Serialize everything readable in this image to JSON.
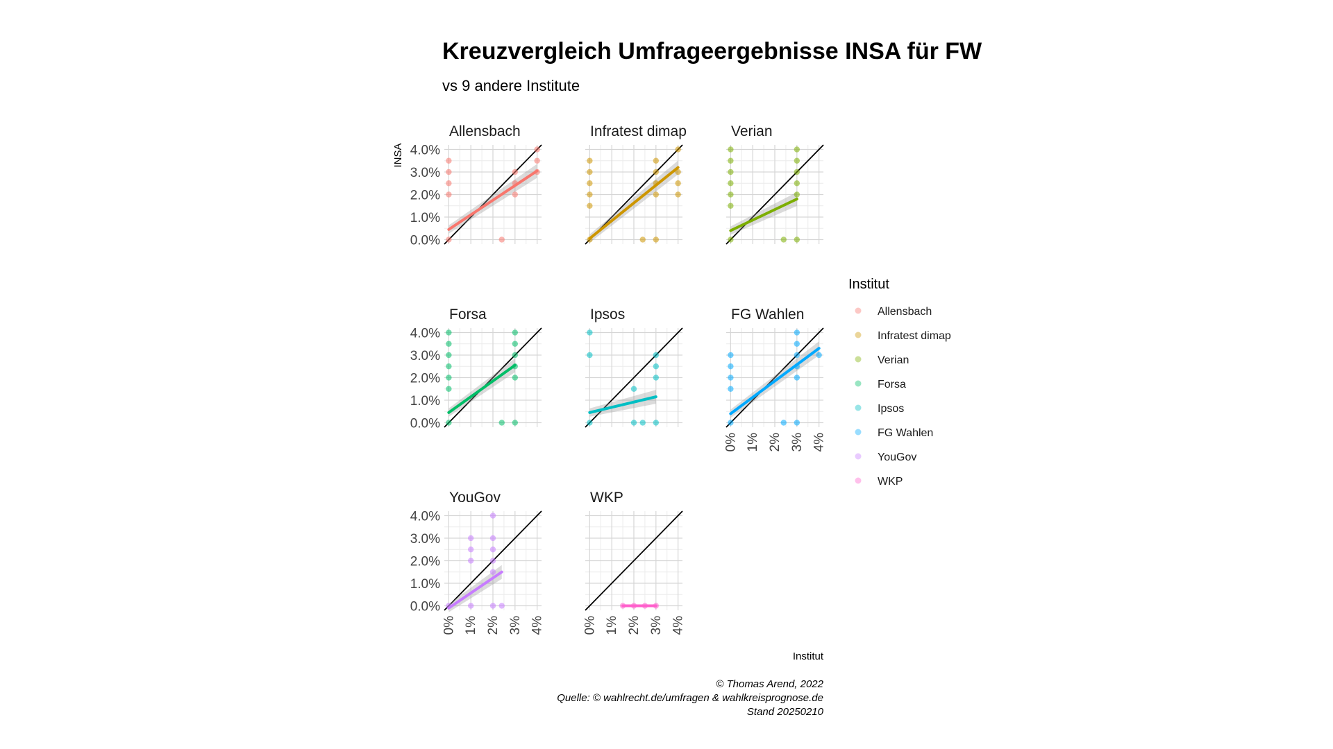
{
  "chart_data": {
    "type": "scatter",
    "title": "Kreuzvergleich Umfrageergebnisse INSA für FW",
    "subtitle": "vs 9 andere Institute",
    "ylabel": "INSA",
    "xlabel": "Institut",
    "y_ticks": [
      "0.0%",
      "1.0%",
      "2.0%",
      "3.0%",
      "4.0%"
    ],
    "x_ticks": [
      "0%",
      "1%",
      "2%",
      "3%",
      "4%"
    ],
    "xlim": [
      -0.2,
      4.2
    ],
    "ylim": [
      -0.2,
      4.2
    ],
    "grid": true,
    "legend_title": "Institut",
    "legend_position": "right",
    "caption": [
      "© Thomas Arend, 2022",
      "Quelle: © wahlrecht.de/umfragen & wahlkreisprognose.de",
      "Stand 20250210"
    ],
    "panels": [
      {
        "name": "Allensbach",
        "color": "#F8766D",
        "points": [
          [
            0,
            0
          ],
          [
            0,
            2
          ],
          [
            0,
            2.5
          ],
          [
            0,
            3
          ],
          [
            0,
            3.5
          ],
          [
            2.4,
            0
          ],
          [
            3,
            2
          ],
          [
            3,
            2.5
          ],
          [
            3,
            3
          ],
          [
            4,
            3
          ],
          [
            4,
            3.5
          ],
          [
            4,
            4
          ]
        ],
        "fit": [
          [
            0,
            0.45
          ],
          [
            4,
            3.05
          ]
        ]
      },
      {
        "name": "Infratest dimap",
        "color": "#CD9600",
        "points": [
          [
            0,
            0
          ],
          [
            0,
            1.5
          ],
          [
            0,
            2
          ],
          [
            0,
            2.5
          ],
          [
            0,
            3
          ],
          [
            0,
            3.5
          ],
          [
            2.4,
            0
          ],
          [
            3,
            0
          ],
          [
            3,
            2
          ],
          [
            3,
            2.5
          ],
          [
            3,
            3
          ],
          [
            3,
            3.5
          ],
          [
            4,
            2
          ],
          [
            4,
            2.5
          ],
          [
            4,
            3
          ],
          [
            4,
            4
          ]
        ],
        "fit": [
          [
            0,
            0.05
          ],
          [
            4,
            3.2
          ]
        ]
      },
      {
        "name": "Verian",
        "color": "#7CAE00",
        "points": [
          [
            0,
            0
          ],
          [
            0,
            1.5
          ],
          [
            0,
            2
          ],
          [
            0,
            2.5
          ],
          [
            0,
            3
          ],
          [
            0,
            3.5
          ],
          [
            0,
            4
          ],
          [
            2.4,
            0
          ],
          [
            3,
            0
          ],
          [
            3,
            2
          ],
          [
            3,
            2.5
          ],
          [
            3,
            3
          ],
          [
            3,
            3.5
          ],
          [
            3,
            4
          ]
        ],
        "fit": [
          [
            0,
            0.4
          ],
          [
            3,
            1.8
          ]
        ]
      },
      {
        "name": "Forsa",
        "color": "#00BE67",
        "points": [
          [
            0,
            0
          ],
          [
            0,
            1.5
          ],
          [
            0,
            2
          ],
          [
            0,
            2.5
          ],
          [
            0,
            3
          ],
          [
            0,
            3.5
          ],
          [
            0,
            4
          ],
          [
            2.4,
            0
          ],
          [
            3,
            0
          ],
          [
            3,
            2
          ],
          [
            3,
            2.5
          ],
          [
            3,
            3
          ],
          [
            3,
            3.5
          ],
          [
            3,
            4
          ]
        ],
        "fit": [
          [
            0,
            0.45
          ],
          [
            3,
            2.55
          ]
        ]
      },
      {
        "name": "Ipsos",
        "color": "#00BFC4",
        "points": [
          [
            0,
            0
          ],
          [
            0,
            3
          ],
          [
            0,
            4
          ],
          [
            2,
            0
          ],
          [
            2,
            1.5
          ],
          [
            2.4,
            0
          ],
          [
            3,
            0
          ],
          [
            3,
            2
          ],
          [
            3,
            2.5
          ],
          [
            3,
            3
          ]
        ],
        "fit": [
          [
            0,
            0.45
          ],
          [
            3,
            1.15
          ]
        ]
      },
      {
        "name": "FG Wahlen",
        "color": "#00A9FF",
        "points": [
          [
            0,
            0
          ],
          [
            0,
            1.5
          ],
          [
            0,
            2
          ],
          [
            0,
            2.5
          ],
          [
            0,
            3
          ],
          [
            2.4,
            0
          ],
          [
            3,
            0
          ],
          [
            3,
            2
          ],
          [
            3,
            2.5
          ],
          [
            3,
            3
          ],
          [
            3,
            3.5
          ],
          [
            3,
            4
          ],
          [
            4,
            3
          ]
        ],
        "fit": [
          [
            0,
            0.4
          ],
          [
            4,
            3.3
          ]
        ]
      },
      {
        "name": "YouGov",
        "color": "#C77CFF",
        "points": [
          [
            0,
            0
          ],
          [
            1,
            0
          ],
          [
            1,
            2
          ],
          [
            1,
            2.5
          ],
          [
            1,
            3
          ],
          [
            2,
            0
          ],
          [
            2,
            1.5
          ],
          [
            2,
            2
          ],
          [
            2,
            2.5
          ],
          [
            2,
            3
          ],
          [
            2,
            4
          ],
          [
            2.4,
            0
          ]
        ],
        "fit": [
          [
            0,
            -0.1
          ],
          [
            2.4,
            1.5
          ]
        ]
      },
      {
        "name": "WKP",
        "color": "#FF61CC",
        "points": [
          [
            1.5,
            0
          ],
          [
            2,
            0
          ],
          [
            2.5,
            0
          ],
          [
            3,
            0
          ]
        ],
        "fit": [
          [
            1.5,
            0
          ],
          [
            3,
            0
          ]
        ]
      }
    ]
  }
}
